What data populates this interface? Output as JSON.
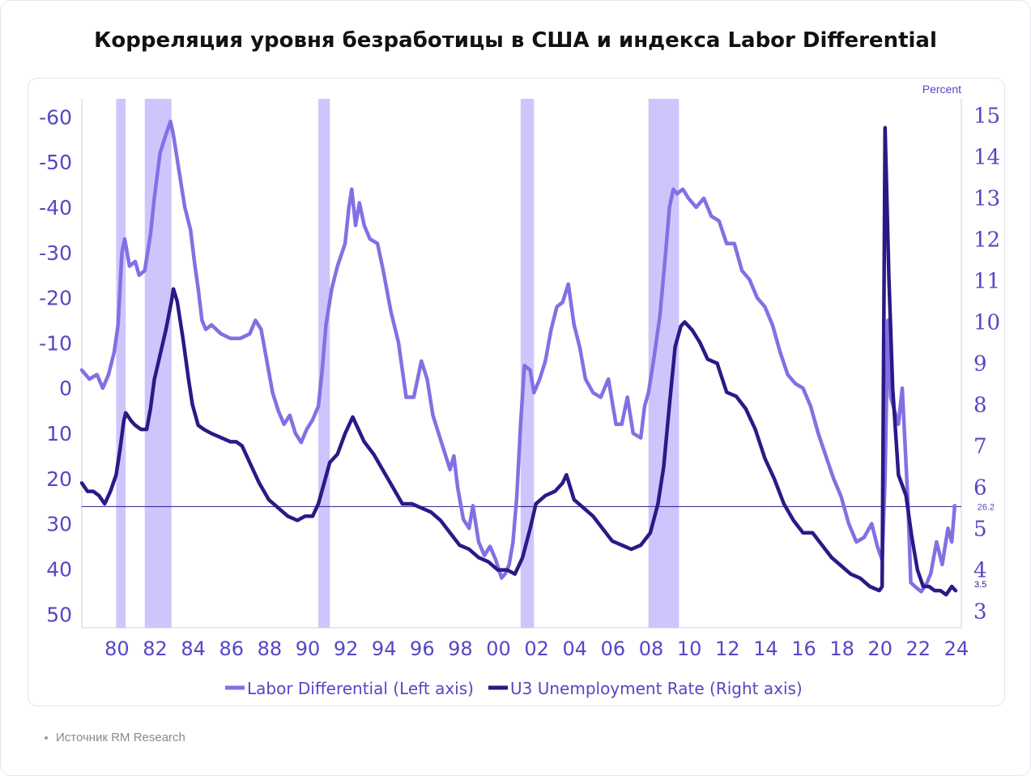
{
  "title": "Корреляция уровня безработицы в США и индекса Labor Differential",
  "source": "Источник RM Research",
  "chart_data": {
    "type": "line",
    "right_axis_unit": "Percent",
    "left_axis": {
      "inverted": true,
      "ticks": [
        -60,
        -50,
        -40,
        -30,
        -20,
        -10,
        0,
        10,
        20,
        30,
        40,
        50
      ],
      "range": [
        -64,
        53
      ]
    },
    "right_axis": {
      "ticks": [
        3,
        4,
        5,
        6,
        7,
        8,
        9,
        10,
        11,
        12,
        13,
        14,
        15
      ],
      "range": [
        2.6,
        15.4
      ]
    },
    "x_axis": {
      "range": [
        1978.2,
        2024.3
      ],
      "ticks": [
        1980,
        1982,
        1984,
        1986,
        1988,
        1990,
        1992,
        1994,
        1996,
        1998,
        2000,
        2002,
        2004,
        2006,
        2008,
        2010,
        2012,
        2014,
        2016,
        2018,
        2020,
        2022,
        2024
      ],
      "tick_labels": [
        "80",
        "82",
        "84",
        "86",
        "88",
        "90",
        "92",
        "94",
        "96",
        "98",
        "00",
        "02",
        "04",
        "06",
        "08",
        "10",
        "12",
        "14",
        "16",
        "18",
        "20",
        "22",
        "24"
      ]
    },
    "recessions": [
      [
        1980.0,
        1980.5
      ],
      [
        1981.5,
        1982.9
      ],
      [
        1990.6,
        1991.2
      ],
      [
        2001.2,
        2001.9
      ],
      [
        2007.9,
        2009.5
      ]
    ],
    "reference_line": {
      "value": 26.2,
      "label": "26.2",
      "axis": "left"
    },
    "last_value_label": {
      "value": 3.5,
      "label": "3.5",
      "axis": "right"
    },
    "colors": {
      "labor_differential": "#8270e3",
      "u3": "#2a1a86",
      "recession": "#cdc6fc",
      "axis_text": "#5547c4",
      "ref_line": "#2a1a86"
    },
    "legend": {
      "placement": "bottom-center"
    },
    "series": [
      {
        "name": "Labor Differential (Left axis)",
        "axis": "left",
        "points": [
          [
            1978.2,
            -4
          ],
          [
            1978.6,
            -2
          ],
          [
            1979.0,
            -3
          ],
          [
            1979.3,
            0
          ],
          [
            1979.6,
            -3
          ],
          [
            1979.9,
            -8
          ],
          [
            1980.1,
            -14
          ],
          [
            1980.3,
            -30
          ],
          [
            1980.45,
            -33
          ],
          [
            1980.7,
            -27
          ],
          [
            1981.0,
            -28
          ],
          [
            1981.2,
            -25
          ],
          [
            1981.5,
            -26
          ],
          [
            1981.8,
            -34
          ],
          [
            1982.0,
            -42
          ],
          [
            1982.3,
            -52
          ],
          [
            1982.6,
            -56
          ],
          [
            1982.85,
            -59
          ],
          [
            1983.0,
            -56
          ],
          [
            1983.3,
            -48
          ],
          [
            1983.6,
            -40
          ],
          [
            1983.9,
            -35
          ],
          [
            1984.1,
            -28
          ],
          [
            1984.3,
            -22
          ],
          [
            1984.5,
            -15
          ],
          [
            1984.7,
            -13
          ],
          [
            1985.0,
            -14
          ],
          [
            1985.5,
            -12
          ],
          [
            1986.0,
            -11
          ],
          [
            1986.5,
            -11
          ],
          [
            1987.0,
            -12
          ],
          [
            1987.3,
            -15
          ],
          [
            1987.6,
            -13
          ],
          [
            1987.9,
            -6
          ],
          [
            1988.2,
            1
          ],
          [
            1988.5,
            5
          ],
          [
            1988.8,
            8
          ],
          [
            1989.1,
            6
          ],
          [
            1989.4,
            10
          ],
          [
            1989.7,
            12
          ],
          [
            1990.0,
            9
          ],
          [
            1990.3,
            7
          ],
          [
            1990.6,
            4
          ],
          [
            1990.8,
            -4
          ],
          [
            1991.0,
            -14
          ],
          [
            1991.3,
            -22
          ],
          [
            1991.6,
            -27
          ],
          [
            1992.0,
            -32
          ],
          [
            1992.2,
            -40
          ],
          [
            1992.35,
            -44
          ],
          [
            1992.55,
            -36
          ],
          [
            1992.75,
            -41
          ],
          [
            1993.0,
            -36
          ],
          [
            1993.3,
            -33
          ],
          [
            1993.7,
            -32
          ],
          [
            1994.0,
            -26
          ],
          [
            1994.4,
            -17
          ],
          [
            1994.8,
            -10
          ],
          [
            1995.2,
            2
          ],
          [
            1995.6,
            2
          ],
          [
            1996.0,
            -6
          ],
          [
            1996.3,
            -2
          ],
          [
            1996.6,
            6
          ],
          [
            1996.9,
            10
          ],
          [
            1997.2,
            14
          ],
          [
            1997.5,
            18
          ],
          [
            1997.7,
            15
          ],
          [
            1997.9,
            22
          ],
          [
            1998.2,
            29
          ],
          [
            1998.5,
            31
          ],
          [
            1998.7,
            26
          ],
          [
            1999.0,
            34
          ],
          [
            1999.3,
            37
          ],
          [
            1999.6,
            35
          ],
          [
            1999.9,
            38
          ],
          [
            2000.2,
            42
          ],
          [
            2000.4,
            41
          ],
          [
            2000.6,
            39
          ],
          [
            2000.8,
            34
          ],
          [
            2001.0,
            24
          ],
          [
            2001.2,
            8
          ],
          [
            2001.4,
            -5
          ],
          [
            2001.7,
            -4
          ],
          [
            2001.9,
            1
          ],
          [
            2002.2,
            -2
          ],
          [
            2002.5,
            -6
          ],
          [
            2002.8,
            -13
          ],
          [
            2003.1,
            -18
          ],
          [
            2003.4,
            -19
          ],
          [
            2003.7,
            -23
          ],
          [
            2004.0,
            -14
          ],
          [
            2004.3,
            -9
          ],
          [
            2004.6,
            -2
          ],
          [
            2005.0,
            1
          ],
          [
            2005.4,
            2
          ],
          [
            2005.8,
            -2
          ],
          [
            2006.2,
            8
          ],
          [
            2006.5,
            8
          ],
          [
            2006.8,
            2
          ],
          [
            2007.1,
            10
          ],
          [
            2007.5,
            11
          ],
          [
            2007.7,
            4
          ],
          [
            2007.9,
            1
          ],
          [
            2008.2,
            -7
          ],
          [
            2008.5,
            -16
          ],
          [
            2008.8,
            -30
          ],
          [
            2009.0,
            -40
          ],
          [
            2009.2,
            -44
          ],
          [
            2009.4,
            -43
          ],
          [
            2009.7,
            -44
          ],
          [
            2010.0,
            -42
          ],
          [
            2010.4,
            -40
          ],
          [
            2010.8,
            -42
          ],
          [
            2011.2,
            -38
          ],
          [
            2011.6,
            -37
          ],
          [
            2012.0,
            -32
          ],
          [
            2012.4,
            -32
          ],
          [
            2012.8,
            -26
          ],
          [
            2013.2,
            -24
          ],
          [
            2013.6,
            -20
          ],
          [
            2014.0,
            -18
          ],
          [
            2014.4,
            -14
          ],
          [
            2014.8,
            -8
          ],
          [
            2015.2,
            -3
          ],
          [
            2015.6,
            -1
          ],
          [
            2016.0,
            0
          ],
          [
            2016.4,
            4
          ],
          [
            2016.8,
            10
          ],
          [
            2017.2,
            15
          ],
          [
            2017.6,
            20
          ],
          [
            2018.0,
            24
          ],
          [
            2018.4,
            30
          ],
          [
            2018.8,
            34
          ],
          [
            2019.2,
            33
          ],
          [
            2019.6,
            30
          ],
          [
            2019.9,
            35
          ],
          [
            2020.15,
            38
          ],
          [
            2020.3,
            20
          ],
          [
            2020.45,
            -15
          ],
          [
            2020.6,
            2
          ],
          [
            2020.8,
            5
          ],
          [
            2021.0,
            8
          ],
          [
            2021.2,
            0
          ],
          [
            2021.5,
            25
          ],
          [
            2021.65,
            43
          ],
          [
            2021.9,
            44
          ],
          [
            2022.2,
            45
          ],
          [
            2022.5,
            43
          ],
          [
            2022.7,
            41
          ],
          [
            2023.0,
            34
          ],
          [
            2023.3,
            39
          ],
          [
            2023.6,
            31
          ],
          [
            2023.8,
            34
          ],
          [
            2023.95,
            26
          ]
        ]
      },
      {
        "name": "U3 Unemployment Rate (Right axis)",
        "axis": "right",
        "points": [
          [
            1978.2,
            6.1
          ],
          [
            1978.5,
            5.9
          ],
          [
            1978.8,
            5.9
          ],
          [
            1979.1,
            5.8
          ],
          [
            1979.4,
            5.6
          ],
          [
            1979.7,
            5.9
          ],
          [
            1980.0,
            6.3
          ],
          [
            1980.2,
            6.9
          ],
          [
            1980.4,
            7.6
          ],
          [
            1980.5,
            7.8
          ],
          [
            1980.8,
            7.6
          ],
          [
            1981.0,
            7.5
          ],
          [
            1981.3,
            7.4
          ],
          [
            1981.6,
            7.4
          ],
          [
            1981.8,
            7.9
          ],
          [
            1982.0,
            8.6
          ],
          [
            1982.3,
            9.2
          ],
          [
            1982.6,
            9.8
          ],
          [
            1982.9,
            10.5
          ],
          [
            1983.0,
            10.8
          ],
          [
            1983.2,
            10.5
          ],
          [
            1983.5,
            9.6
          ],
          [
            1983.8,
            8.6
          ],
          [
            1984.0,
            8.0
          ],
          [
            1984.3,
            7.5
          ],
          [
            1984.6,
            7.4
          ],
          [
            1985.0,
            7.3
          ],
          [
            1985.5,
            7.2
          ],
          [
            1986.0,
            7.1
          ],
          [
            1986.3,
            7.1
          ],
          [
            1986.6,
            7.0
          ],
          [
            1987.0,
            6.6
          ],
          [
            1987.5,
            6.1
          ],
          [
            1988.0,
            5.7
          ],
          [
            1988.5,
            5.5
          ],
          [
            1989.0,
            5.3
          ],
          [
            1989.5,
            5.2
          ],
          [
            1989.9,
            5.3
          ],
          [
            1990.3,
            5.3
          ],
          [
            1990.6,
            5.6
          ],
          [
            1990.9,
            6.1
          ],
          [
            1991.2,
            6.6
          ],
          [
            1991.6,
            6.8
          ],
          [
            1992.0,
            7.3
          ],
          [
            1992.4,
            7.7
          ],
          [
            1992.6,
            7.5
          ],
          [
            1993.0,
            7.1
          ],
          [
            1993.5,
            6.8
          ],
          [
            1994.0,
            6.4
          ],
          [
            1994.5,
            6.0
          ],
          [
            1995.0,
            5.6
          ],
          [
            1995.5,
            5.6
          ],
          [
            1996.0,
            5.5
          ],
          [
            1996.5,
            5.4
          ],
          [
            1997.0,
            5.2
          ],
          [
            1997.5,
            4.9
          ],
          [
            1998.0,
            4.6
          ],
          [
            1998.5,
            4.5
          ],
          [
            1999.0,
            4.3
          ],
          [
            1999.5,
            4.2
          ],
          [
            2000.0,
            4.0
          ],
          [
            2000.5,
            4.0
          ],
          [
            2000.9,
            3.9
          ],
          [
            2001.3,
            4.3
          ],
          [
            2001.7,
            5.0
          ],
          [
            2002.0,
            5.6
          ],
          [
            2002.5,
            5.8
          ],
          [
            2003.0,
            5.9
          ],
          [
            2003.4,
            6.1
          ],
          [
            2003.6,
            6.3
          ],
          [
            2004.0,
            5.7
          ],
          [
            2004.5,
            5.5
          ],
          [
            2005.0,
            5.3
          ],
          [
            2005.5,
            5.0
          ],
          [
            2006.0,
            4.7
          ],
          [
            2006.5,
            4.6
          ],
          [
            2007.0,
            4.5
          ],
          [
            2007.5,
            4.6
          ],
          [
            2008.0,
            4.9
          ],
          [
            2008.4,
            5.6
          ],
          [
            2008.7,
            6.5
          ],
          [
            2009.0,
            8.0
          ],
          [
            2009.3,
            9.4
          ],
          [
            2009.6,
            9.9
          ],
          [
            2009.8,
            10.0
          ],
          [
            2010.2,
            9.8
          ],
          [
            2010.6,
            9.5
          ],
          [
            2011.0,
            9.1
          ],
          [
            2011.5,
            9.0
          ],
          [
            2012.0,
            8.3
          ],
          [
            2012.5,
            8.2
          ],
          [
            2013.0,
            7.9
          ],
          [
            2013.5,
            7.4
          ],
          [
            2014.0,
            6.7
          ],
          [
            2014.5,
            6.2
          ],
          [
            2015.0,
            5.6
          ],
          [
            2015.5,
            5.2
          ],
          [
            2016.0,
            4.9
          ],
          [
            2016.5,
            4.9
          ],
          [
            2017.0,
            4.6
          ],
          [
            2017.5,
            4.3
          ],
          [
            2018.0,
            4.1
          ],
          [
            2018.5,
            3.9
          ],
          [
            2019.0,
            3.8
          ],
          [
            2019.5,
            3.6
          ],
          [
            2020.0,
            3.5
          ],
          [
            2020.15,
            3.6
          ],
          [
            2020.3,
            14.7
          ],
          [
            2020.5,
            11.1
          ],
          [
            2020.7,
            8.4
          ],
          [
            2021.0,
            6.3
          ],
          [
            2021.4,
            5.8
          ],
          [
            2021.7,
            4.8
          ],
          [
            2022.0,
            4.0
          ],
          [
            2022.3,
            3.6
          ],
          [
            2022.6,
            3.6
          ],
          [
            2022.9,
            3.5
          ],
          [
            2023.2,
            3.5
          ],
          [
            2023.5,
            3.4
          ],
          [
            2023.8,
            3.6
          ],
          [
            2024.0,
            3.5
          ]
        ]
      }
    ]
  }
}
